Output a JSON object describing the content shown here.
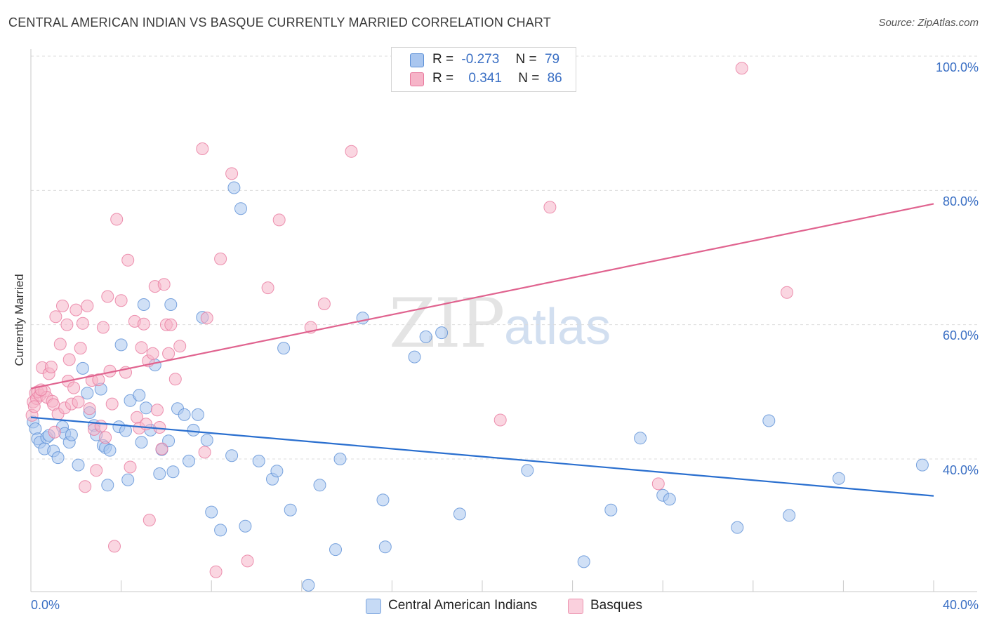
{
  "header": {
    "title": "CENTRAL AMERICAN INDIAN VS BASQUE CURRENTLY MARRIED CORRELATION CHART",
    "source": "Source: ZipAtlas.com"
  },
  "watermark": {
    "zip": "ZIP",
    "atlas": "atlas"
  },
  "legend": {
    "rows": [
      {
        "r_label": "R =",
        "r_value": "-0.273",
        "n_label": "N =",
        "n_value": "79",
        "color": "#a9c6ef"
      },
      {
        "r_label": "R =",
        "r_value": "0.341",
        "n_label": "N =",
        "n_value": "86",
        "color": "#f6b4c8"
      }
    ]
  },
  "bottom_legend": {
    "items": [
      {
        "label": "Central American Indians",
        "color": "#a9c6ef"
      },
      {
        "label": "Basques",
        "color": "#f6b4c8"
      }
    ]
  },
  "colors": {
    "blue_fill": "#a9c6ef",
    "blue_stroke": "#5b8fd6",
    "blue_line": "#2a6fcf",
    "pink_fill": "#f6b4c8",
    "pink_stroke": "#e8789d",
    "pink_line": "#e0638f",
    "tick_label": "#3a6fc4",
    "grid": "#dcdcdc"
  },
  "chart_data": {
    "type": "scatter",
    "title": "CENTRAL AMERICAN INDIAN VS BASQUE CURRENTLY MARRIED CORRELATION CHART",
    "xlabel": "",
    "ylabel": "Currently Married",
    "xlim": [
      0,
      40
    ],
    "ylim": [
      20,
      102
    ],
    "x_tick_labels": [
      "0.0%",
      "40.0%"
    ],
    "y_ticks": [
      40,
      60,
      80,
      100
    ],
    "y_tick_labels": [
      "40.0%",
      "60.0%",
      "80.0%",
      "100.0%"
    ],
    "grid": true,
    "legend_position": "top-center",
    "series": [
      {
        "name": "Central American Indians",
        "trend": {
          "x": [
            0,
            40
          ],
          "y": [
            46.2,
            34.5
          ]
        },
        "points": [
          [
            0.1,
            45.5
          ],
          [
            0.2,
            44.5
          ],
          [
            0.3,
            43
          ],
          [
            0.4,
            42.5
          ],
          [
            0.6,
            41.5
          ],
          [
            0.7,
            43.2
          ],
          [
            0.8,
            43.5
          ],
          [
            1.0,
            41.2
          ],
          [
            1.2,
            40.2
          ],
          [
            1.4,
            44.8
          ],
          [
            1.5,
            43.8
          ],
          [
            1.7,
            42.5
          ],
          [
            1.8,
            43.6
          ],
          [
            2.1,
            39.1
          ],
          [
            2.3,
            53.5
          ],
          [
            2.5,
            49.8
          ],
          [
            2.6,
            46.9
          ],
          [
            2.8,
            45.0
          ],
          [
            2.9,
            43.6
          ],
          [
            3.1,
            50.4
          ],
          [
            3.2,
            42.0
          ],
          [
            3.3,
            41.7
          ],
          [
            3.4,
            36.1
          ],
          [
            3.5,
            41.3
          ],
          [
            3.9,
            44.8
          ],
          [
            4.0,
            57.0
          ],
          [
            4.2,
            44.2
          ],
          [
            4.3,
            36.9
          ],
          [
            4.4,
            48.7
          ],
          [
            4.8,
            49.5
          ],
          [
            4.9,
            42.5
          ],
          [
            5.0,
            63.0
          ],
          [
            5.1,
            47.6
          ],
          [
            5.3,
            44.3
          ],
          [
            5.5,
            54.0
          ],
          [
            5.7,
            37.8
          ],
          [
            5.8,
            41.4
          ],
          [
            6.1,
            42.7
          ],
          [
            6.2,
            63.0
          ],
          [
            6.3,
            38.1
          ],
          [
            6.5,
            47.5
          ],
          [
            6.8,
            46.6
          ],
          [
            7.0,
            39.7
          ],
          [
            7.2,
            44.3
          ],
          [
            7.4,
            46.6
          ],
          [
            7.6,
            61.1
          ],
          [
            7.8,
            42.8
          ],
          [
            8.0,
            32.1
          ],
          [
            8.4,
            29.4
          ],
          [
            9.0,
            80.4
          ],
          [
            9.3,
            77.3
          ],
          [
            8.9,
            40.5
          ],
          [
            9.5,
            30.0
          ],
          [
            10.1,
            39.7
          ],
          [
            10.7,
            37.0
          ],
          [
            10.9,
            38.2
          ],
          [
            11.2,
            56.5
          ],
          [
            11.5,
            32.4
          ],
          [
            12.8,
            36.1
          ],
          [
            13.5,
            26.5
          ],
          [
            13.7,
            40.0
          ],
          [
            14.7,
            61.0
          ],
          [
            15.6,
            33.9
          ],
          [
            15.7,
            26.9
          ],
          [
            17.0,
            55.2
          ],
          [
            17.5,
            58.2
          ],
          [
            18.2,
            58.8
          ],
          [
            19.0,
            31.8
          ],
          [
            22.0,
            38.3
          ],
          [
            24.5,
            24.7
          ],
          [
            25.7,
            32.4
          ],
          [
            27.0,
            43.1
          ],
          [
            28.0,
            34.6
          ],
          [
            28.3,
            34.0
          ],
          [
            31.3,
            29.8
          ],
          [
            32.7,
            45.7
          ],
          [
            33.6,
            31.6
          ],
          [
            35.8,
            37.1
          ],
          [
            39.5,
            39.1
          ],
          [
            12.3,
            21.2
          ]
        ]
      },
      {
        "name": "Basques",
        "trend": {
          "x": [
            0,
            40
          ],
          "y": [
            50.5,
            78.0
          ]
        },
        "points": [
          [
            0.1,
            48.5
          ],
          [
            0.2,
            49.8
          ],
          [
            0.25,
            49.0
          ],
          [
            0.3,
            50.0
          ],
          [
            0.4,
            49.5
          ],
          [
            0.5,
            53.6
          ],
          [
            0.6,
            50.1
          ],
          [
            0.7,
            49.2
          ],
          [
            0.8,
            52.7
          ],
          [
            0.9,
            53.7
          ],
          [
            0.95,
            48.6
          ],
          [
            1.0,
            48.1
          ],
          [
            1.1,
            61.2
          ],
          [
            1.2,
            46.7
          ],
          [
            1.3,
            57.1
          ],
          [
            1.4,
            62.8
          ],
          [
            1.5,
            47.6
          ],
          [
            1.6,
            60.0
          ],
          [
            1.65,
            51.6
          ],
          [
            1.7,
            54.8
          ],
          [
            1.8,
            48.2
          ],
          [
            1.9,
            50.6
          ],
          [
            2.0,
            62.2
          ],
          [
            2.1,
            48.5
          ],
          [
            2.2,
            56.5
          ],
          [
            2.3,
            60.2
          ],
          [
            2.4,
            35.9
          ],
          [
            2.5,
            62.8
          ],
          [
            2.6,
            47.5
          ],
          [
            2.7,
            51.7
          ],
          [
            2.8,
            44.4
          ],
          [
            2.9,
            38.3
          ],
          [
            3.0,
            51.8
          ],
          [
            3.1,
            44.9
          ],
          [
            3.2,
            59.6
          ],
          [
            3.3,
            43.2
          ],
          [
            3.4,
            64.2
          ],
          [
            3.5,
            53.1
          ],
          [
            3.6,
            48.2
          ],
          [
            3.7,
            27.0
          ],
          [
            3.8,
            75.7
          ],
          [
            4.0,
            63.6
          ],
          [
            4.2,
            52.9
          ],
          [
            4.3,
            69.6
          ],
          [
            4.4,
            38.8
          ],
          [
            4.6,
            60.5
          ],
          [
            4.7,
            46.2
          ],
          [
            4.8,
            44.6
          ],
          [
            4.9,
            56.6
          ],
          [
            5.0,
            60.1
          ],
          [
            5.1,
            45.2
          ],
          [
            5.2,
            54.6
          ],
          [
            5.25,
            30.9
          ],
          [
            5.4,
            55.7
          ],
          [
            5.5,
            65.7
          ],
          [
            5.6,
            47.3
          ],
          [
            5.7,
            44.7
          ],
          [
            5.8,
            41.5
          ],
          [
            5.9,
            66.0
          ],
          [
            6.0,
            60.0
          ],
          [
            6.1,
            55.7
          ],
          [
            6.2,
            60.0
          ],
          [
            6.4,
            51.9
          ],
          [
            6.6,
            56.8
          ],
          [
            7.6,
            86.2
          ],
          [
            7.7,
            41.0
          ],
          [
            7.8,
            61.0
          ],
          [
            8.2,
            23.2
          ],
          [
            8.4,
            69.8
          ],
          [
            8.9,
            82.5
          ],
          [
            9.6,
            24.8
          ],
          [
            10.5,
            65.5
          ],
          [
            11.0,
            75.6
          ],
          [
            12.4,
            59.6
          ],
          [
            13.0,
            63.1
          ],
          [
            14.2,
            85.8
          ],
          [
            17.4,
            100.0
          ],
          [
            20.8,
            45.8
          ],
          [
            23.0,
            77.5
          ],
          [
            27.8,
            36.3
          ],
          [
            31.5,
            98.2
          ],
          [
            33.5,
            64.8
          ],
          [
            0.05,
            46.5
          ],
          [
            0.15,
            47.8
          ],
          [
            1.05,
            44.0
          ],
          [
            0.45,
            50.3
          ]
        ]
      }
    ]
  }
}
